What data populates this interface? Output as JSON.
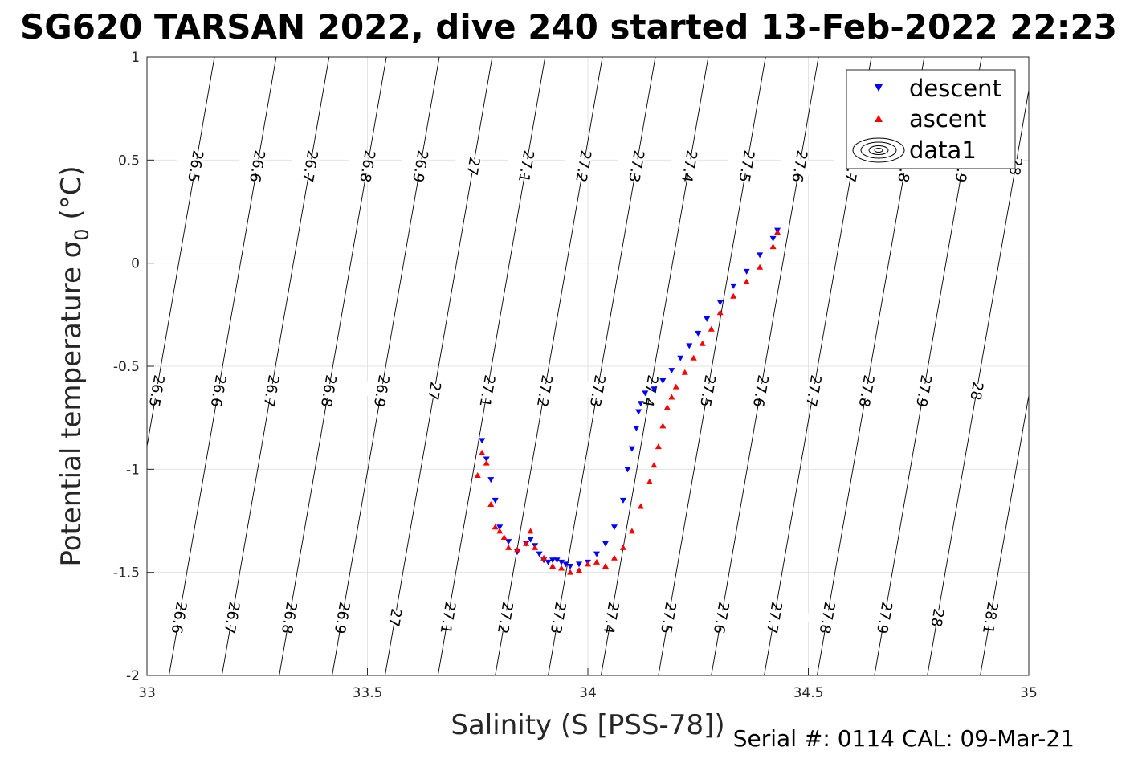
{
  "chart_data": {
    "type": "scatter",
    "title": "SG620 TARSAN 2022, dive 240 started 13-Feb-2022 22:23",
    "xlabel": "Salinity (S [PSS-78])",
    "ylabel_text": "Potential temperature ",
    "ylabel_sigma": "σ",
    "ylabel_sub": "0",
    "ylabel_unit": " (°C)",
    "xlim": [
      33,
      35
    ],
    "ylim": [
      -2,
      1
    ],
    "x_ticks": [
      33,
      33.5,
      34,
      34.5,
      35
    ],
    "x_tick_labels": [
      "33",
      "33.5",
      "34",
      "34.5",
      "35"
    ],
    "y_ticks": [
      -2,
      -1.5,
      -1,
      -0.5,
      0,
      0.5,
      1
    ],
    "y_tick_labels": [
      "-2",
      "-1.5",
      "-1",
      "-0.5",
      "0",
      "0.5",
      "1"
    ],
    "grid": true,
    "legend_position": "top-right",
    "legend": [
      "descent",
      "ascent",
      "data1"
    ],
    "footer": "Serial #: 0114  CAL: 09-Mar-21",
    "isopycnals": {
      "labels": [
        "26.5",
        "26.6",
        "26.7",
        "26.8",
        "26.9",
        "27",
        "27.1",
        "27.2",
        "27.3",
        "27.4",
        "27.5",
        "27.6",
        "27.7",
        "27.8",
        "27.9",
        "28",
        "28.1"
      ],
      "values": [
        26.5,
        26.6,
        26.7,
        26.8,
        26.9,
        27.0,
        27.1,
        27.2,
        27.3,
        27.4,
        27.5,
        27.6,
        27.7,
        27.8,
        27.9,
        28.0,
        28.1
      ],
      "x_at_t_minus2": [
        32.91,
        33.05,
        33.17,
        33.3,
        33.42,
        33.54,
        33.66,
        33.79,
        33.91,
        34.03,
        34.16,
        34.28,
        34.4,
        34.52,
        34.65,
        34.77,
        34.89
      ],
      "x_per_degree": 0.081
    },
    "series": [
      {
        "name": "descent",
        "marker": "triangle-down",
        "color": "#0000ff",
        "x": [
          33.76,
          33.77,
          33.78,
          33.79,
          33.8,
          33.82,
          33.84,
          33.86,
          33.87,
          33.88,
          33.89,
          33.9,
          33.91,
          33.92,
          33.93,
          33.94,
          33.95,
          33.96,
          33.98,
          34.0,
          34.02,
          34.04,
          34.06,
          34.08,
          34.09,
          34.1,
          34.11,
          34.115,
          34.12,
          34.13,
          34.15,
          34.17,
          34.19,
          34.21,
          34.23,
          34.25,
          34.27,
          34.3,
          34.33,
          34.36,
          34.39,
          34.42,
          34.43
        ],
        "y": [
          -0.86,
          -0.95,
          -1.05,
          -1.15,
          -1.28,
          -1.35,
          -1.4,
          -1.36,
          -1.34,
          -1.37,
          -1.41,
          -1.44,
          -1.45,
          -1.44,
          -1.44,
          -1.45,
          -1.46,
          -1.47,
          -1.46,
          -1.45,
          -1.41,
          -1.36,
          -1.28,
          -1.15,
          -1.0,
          -0.9,
          -0.8,
          -0.72,
          -0.68,
          -0.63,
          -0.61,
          -0.57,
          -0.52,
          -0.46,
          -0.4,
          -0.34,
          -0.27,
          -0.19,
          -0.11,
          -0.04,
          0.04,
          0.12,
          0.16
        ]
      },
      {
        "name": "ascent",
        "marker": "triangle-up",
        "color": "#ff0000",
        "x": [
          33.75,
          33.76,
          33.77,
          33.78,
          33.79,
          33.8,
          33.81,
          33.82,
          33.84,
          33.86,
          33.87,
          33.88,
          33.9,
          33.92,
          33.94,
          33.96,
          33.98,
          34.0,
          34.02,
          34.04,
          34.06,
          34.08,
          34.1,
          34.12,
          34.14,
          34.15,
          34.16,
          34.17,
          34.18,
          34.19,
          34.2,
          34.22,
          34.24,
          34.26,
          34.28,
          34.3,
          34.33,
          34.36,
          34.39,
          34.42,
          34.43
        ],
        "y": [
          -1.03,
          -0.92,
          -0.97,
          -1.17,
          -1.28,
          -1.3,
          -1.33,
          -1.38,
          -1.39,
          -1.36,
          -1.3,
          -1.38,
          -1.43,
          -1.47,
          -1.48,
          -1.5,
          -1.49,
          -1.46,
          -1.45,
          -1.47,
          -1.43,
          -1.38,
          -1.3,
          -1.18,
          -1.06,
          -0.98,
          -0.89,
          -0.79,
          -0.7,
          -0.65,
          -0.6,
          -0.53,
          -0.46,
          -0.39,
          -0.32,
          -0.24,
          -0.16,
          -0.09,
          -0.02,
          0.08,
          0.15
        ]
      }
    ]
  }
}
